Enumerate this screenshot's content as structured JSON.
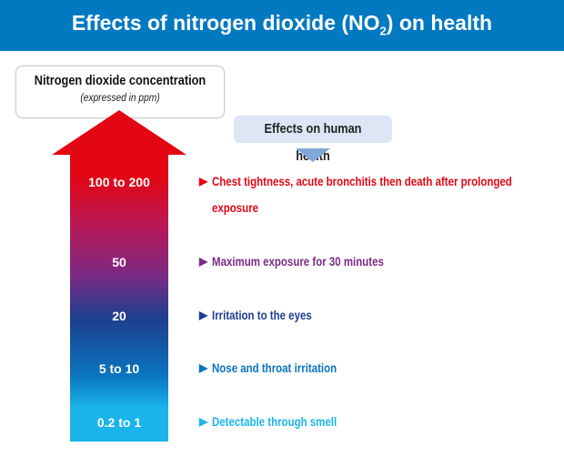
{
  "header": {
    "title_main": "Effects of nitrogen dioxide (NO",
    "title_sub": "2",
    "title_end": ") on health"
  },
  "concentration_box": {
    "title": "Nitrogen dioxide concentration",
    "subtitle": "(expressed in ppm)"
  },
  "effects_box": {
    "title": "Effects on human health"
  },
  "colors": {
    "header": "#0079c1",
    "red": "#e30613",
    "purple": "#7b2a85",
    "dark_blue": "#1d3f8f",
    "blue": "#0a74bf",
    "light_blue": "#1ab4ea"
  },
  "levels": [
    {
      "concentration": "100 to 200",
      "effect": "Chest tightness, acute bronchitis then death after prolonged exposure",
      "color": "#e30613"
    },
    {
      "concentration": "50",
      "effect": "Maximum exposure for 30 minutes",
      "color": "#7b2a85"
    },
    {
      "concentration": "20",
      "effect": "Irritation to the eyes",
      "color": "#1d3f8f"
    },
    {
      "concentration": "5 to 10",
      "effect": "Nose and throat irritation",
      "color": "#0a74bf"
    },
    {
      "concentration": "0.2 to 1",
      "effect": "Detectable through smell",
      "color": "#1ab4ea"
    }
  ]
}
